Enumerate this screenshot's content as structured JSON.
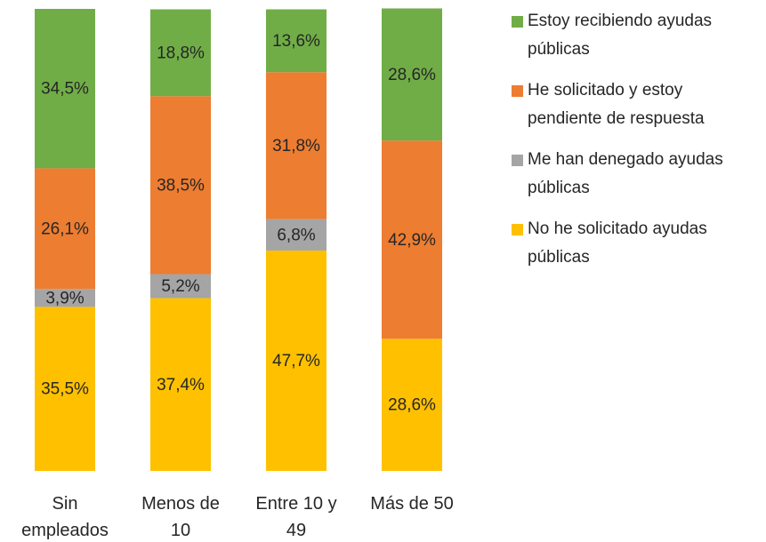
{
  "chart_data": {
    "type": "stacked_bar_100",
    "categories": [
      "Sin empleados",
      "Menos de 10",
      "Entre 10 y 49",
      "Más de 50"
    ],
    "series": [
      {
        "name": "Estoy recibiendo ayudas públicas",
        "color": "#70ad47",
        "values": [
          34.5,
          18.8,
          13.6,
          28.6
        ],
        "value_labels": [
          "34,5%",
          "18,8%",
          "13,6%",
          "28,6%"
        ]
      },
      {
        "name": "He solicitado y estoy pendiente de respuesta",
        "color": "#ed7d31",
        "values": [
          26.1,
          38.5,
          31.8,
          42.9
        ],
        "value_labels": [
          "26,1%",
          "38,5%",
          "31,8%",
          "42,9%"
        ]
      },
      {
        "name": "Me han denegado ayudas públicas",
        "color": "#a5a5a5",
        "values": [
          3.9,
          5.2,
          6.8,
          null
        ],
        "value_labels": [
          "3,9%",
          "5,2%",
          "6,8%",
          null
        ]
      },
      {
        "name": "No he solicitado ayudas públicas",
        "color": "#ffc000",
        "values": [
          35.5,
          37.4,
          47.7,
          28.6
        ],
        "value_labels": [
          "35,5%",
          "37,4%",
          "47,7%",
          "28,6%"
        ]
      }
    ],
    "ylim": [
      0,
      100
    ],
    "legend": "right"
  }
}
